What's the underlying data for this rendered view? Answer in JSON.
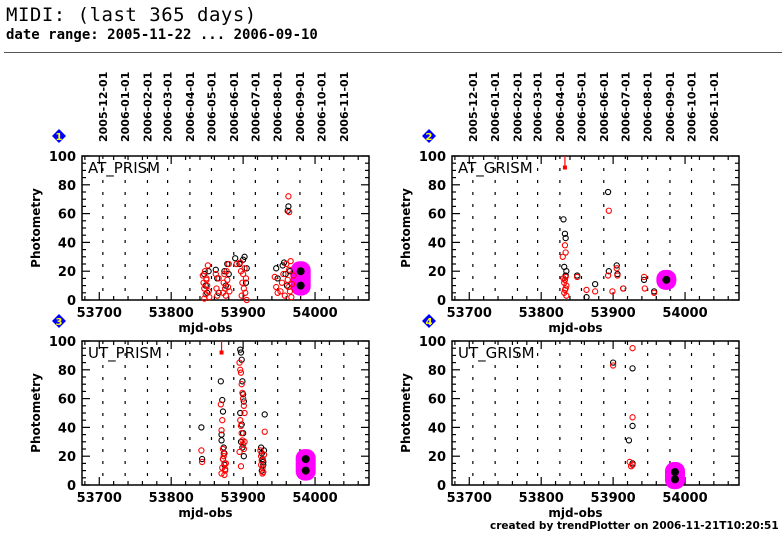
{
  "header": {
    "title": "MIDI: (last 365 days)",
    "subtitle": "date range: 2005-11-22 ... 2006-09-10"
  },
  "footer": "created by trendPlotter on 2006-11-21T10:20:51",
  "colors": {
    "open_marker_black": "#000000",
    "open_marker_red": "#ff0000",
    "highlight": "#ff00ff",
    "diamond": "#0000ff",
    "diamond_number": "#ffff00",
    "grid": "#000000"
  },
  "chart_data": [
    {
      "type": "scatter",
      "index": "1",
      "title": "AT_PRISM",
      "xlabel": "mjd-obs",
      "ylabel": "Photometry",
      "xlim": [
        53676,
        54075
      ],
      "ylim": [
        0,
        100
      ],
      "xticks": [
        53700,
        53800,
        53900,
        54000
      ],
      "yticks": [
        0,
        20,
        40,
        60,
        80,
        100
      ],
      "top_axis_dates": [
        "2005-12-01",
        "2006-01-01",
        "2006-02-01",
        "2006-03-01",
        "2006-04-01",
        "2006-05-01",
        "2006-06-01",
        "2006-07-01",
        "2006-08-01",
        "2006-09-01",
        "2006-10-01",
        "2006-11-01"
      ],
      "date_mjd": [
        53705,
        53736,
        53767,
        53795,
        53826,
        53856,
        53887,
        53917,
        53948,
        53979,
        54009,
        54040
      ],
      "show_top_axis": true,
      "series": [
        {
          "name": "black-open",
          "x": [
            53846,
            53848,
            53850,
            53852,
            53862,
            53864,
            53866,
            53874,
            53876,
            53878,
            53880,
            53889,
            53895,
            53900,
            53902,
            53904,
            53905,
            53946,
            53948,
            53955,
            53957,
            53959,
            53961,
            53963,
            53962,
            53965
          ],
          "y": [
            18,
            10,
            5,
            20,
            21,
            15,
            5,
            20,
            10,
            25,
            18,
            29,
            25,
            28,
            30,
            12,
            22,
            22,
            15,
            24,
            26,
            18,
            10,
            65,
            62,
            20
          ]
        },
        {
          "name": "red-open",
          "x": [
            53844,
            53845,
            53846,
            53847,
            53848,
            53849,
            53850,
            53851,
            53852,
            53853,
            53846,
            53849,
            53862,
            53863,
            53864,
            53866,
            53872,
            53873,
            53874,
            53875,
            53876,
            53877,
            53878,
            53879,
            53880,
            53881,
            53891,
            53896,
            53897,
            53898,
            53899,
            53900,
            53901,
            53902,
            53903,
            53904,
            53905,
            53944,
            53946,
            53948,
            53952,
            53954,
            53956,
            53958,
            53960,
            53962,
            53963,
            53964,
            53965,
            53966,
            53967,
            53968,
            53963,
            53964,
            53970
          ],
          "y": [
            17,
            12,
            8,
            20,
            4,
            15,
            10,
            24,
            6,
            2,
            1,
            14,
            18,
            8,
            3,
            15,
            5,
            12,
            18,
            8,
            3,
            20,
            14,
            9,
            25,
            6,
            25,
            26,
            20,
            3,
            12,
            18,
            8,
            22,
            5,
            15,
            0,
            16,
            9,
            5,
            6,
            12,
            18,
            3,
            25,
            14,
            9,
            21,
            6,
            27,
            2,
            11,
            72,
            61,
            17
          ]
        }
      ],
      "highlight": {
        "x": [
          53980,
          53980
        ],
        "y": [
          20,
          10
        ]
      }
    },
    {
      "type": "scatter",
      "index": "2",
      "title": "AT_GRISM",
      "xlabel": "mjd-obs",
      "ylabel": "Photometry",
      "xlim": [
        53676,
        54075
      ],
      "ylim": [
        0,
        100
      ],
      "xticks": [
        53700,
        53800,
        53900,
        54000
      ],
      "yticks": [
        0,
        20,
        40,
        60,
        80,
        100
      ],
      "top_axis_dates": [
        "2005-12-01",
        "2006-01-01",
        "2006-02-01",
        "2006-03-01",
        "2006-04-01",
        "2006-05-01",
        "2006-06-01",
        "2006-07-01",
        "2006-08-01",
        "2006-09-01",
        "2006-10-01",
        "2006-11-01"
      ],
      "date_mjd": [
        53705,
        53736,
        53767,
        53795,
        53826,
        53856,
        53887,
        53917,
        53948,
        53979,
        54009,
        54040
      ],
      "show_top_axis": true,
      "series": [
        {
          "name": "black-open",
          "x": [
            53831,
            53833,
            53834,
            53835,
            53832,
            53834,
            53850,
            53863,
            53875,
            53893,
            53894,
            53905,
            53906,
            53914,
            53943,
            53957
          ],
          "y": [
            56,
            46,
            43,
            20,
            23,
            17,
            17,
            2,
            11,
            75,
            20,
            24,
            18,
            8,
            14,
            6
          ]
        },
        {
          "name": "red-open",
          "x": [
            53830,
            53831,
            53832,
            53833,
            53834,
            53835,
            53832,
            53833,
            53834,
            53835,
            53833,
            53834,
            53850,
            53863,
            53875,
            53894,
            53893,
            53899,
            53905,
            53906,
            53914,
            53943,
            53944,
            53957
          ],
          "y": [
            30,
            15,
            12,
            38,
            33,
            10,
            5,
            14,
            8,
            3,
            7,
            16,
            16,
            7,
            6,
            62,
            17,
            6,
            22,
            17,
            8,
            16,
            8,
            5
          ]
        },
        {
          "name": "red-errorbar",
          "x": [
            53833
          ],
          "y": [
            92
          ]
        }
      ],
      "highlight": {
        "x": [
          53974
        ],
        "y": [
          14
        ]
      }
    },
    {
      "type": "scatter",
      "index": "3",
      "title": "UT_PRISM",
      "xlabel": "mjd-obs",
      "ylabel": "Photometry",
      "xlim": [
        53676,
        54075
      ],
      "ylim": [
        0,
        100
      ],
      "xticks": [
        53700,
        53800,
        53900,
        54000
      ],
      "yticks": [
        0,
        20,
        40,
        60,
        80,
        100
      ],
      "show_top_axis": false,
      "series": [
        {
          "name": "black-open",
          "x": [
            53842,
            53843,
            53869,
            53870,
            53871,
            53872,
            53873,
            53874,
            53870,
            53872,
            53874,
            53896,
            53897,
            53898,
            53899,
            53900,
            53901,
            53896,
            53898,
            53900,
            53897,
            53899,
            53901,
            53925,
            53926,
            53927,
            53928,
            53929,
            53930,
            53926,
            53928
          ],
          "y": [
            40,
            18,
            72,
            35,
            59,
            51,
            26,
            22,
            31,
            18,
            14,
            94,
            92,
            87,
            72,
            63,
            58,
            50,
            42,
            36,
            30,
            26,
            20,
            26,
            22,
            18,
            14,
            24,
            49,
            10,
            16
          ]
        },
        {
          "name": "red-open",
          "x": [
            53842,
            53843,
            53869,
            53870,
            53871,
            53872,
            53873,
            53874,
            53875,
            53870,
            53871,
            53872,
            53873,
            53874,
            53875,
            53876,
            53895,
            53896,
            53897,
            53898,
            53899,
            53900,
            53901,
            53902,
            53896,
            53897,
            53898,
            53899,
            53900,
            53901,
            53902,
            53895,
            53897,
            53924,
            53925,
            53926,
            53927,
            53928,
            53929,
            53930,
            53925,
            53927
          ],
          "y": [
            24,
            16,
            56,
            38,
            45,
            25,
            20,
            15,
            10,
            8,
            12,
            18,
            22,
            7,
            11,
            15,
            85,
            80,
            78,
            70,
            64,
            60,
            55,
            50,
            45,
            41,
            36,
            31,
            28,
            25,
            30,
            23,
            13,
            24,
            20,
            17,
            12,
            9,
            21,
            37,
            14,
            8
          ]
        },
        {
          "name": "red-errorbar",
          "x": [
            53870
          ],
          "y": [
            92
          ]
        }
      ],
      "highlight": {
        "x": [
          53987,
          53987
        ],
        "y": [
          18,
          10
        ]
      }
    },
    {
      "type": "scatter",
      "index": "4",
      "title": "UT_GRISM",
      "xlabel": "mjd-obs",
      "ylabel": "Photometry",
      "xlim": [
        53676,
        54075
      ],
      "ylim": [
        0,
        100
      ],
      "xticks": [
        53700,
        53800,
        53900,
        54000
      ],
      "yticks": [
        0,
        20,
        40,
        60,
        80,
        100
      ],
      "show_top_axis": false,
      "series": [
        {
          "name": "black-open",
          "x": [
            53900,
            53927,
            53927,
            53922,
            53927
          ],
          "y": [
            85,
            81,
            41,
            31,
            15
          ]
        },
        {
          "name": "red-open",
          "x": [
            53900,
            53927,
            53927,
            53923,
            53925,
            53927
          ],
          "y": [
            83,
            95,
            47,
            16,
            13,
            14
          ]
        }
      ],
      "highlight": {
        "x": [
          53986,
          53986
        ],
        "y": [
          9,
          4
        ]
      }
    }
  ]
}
